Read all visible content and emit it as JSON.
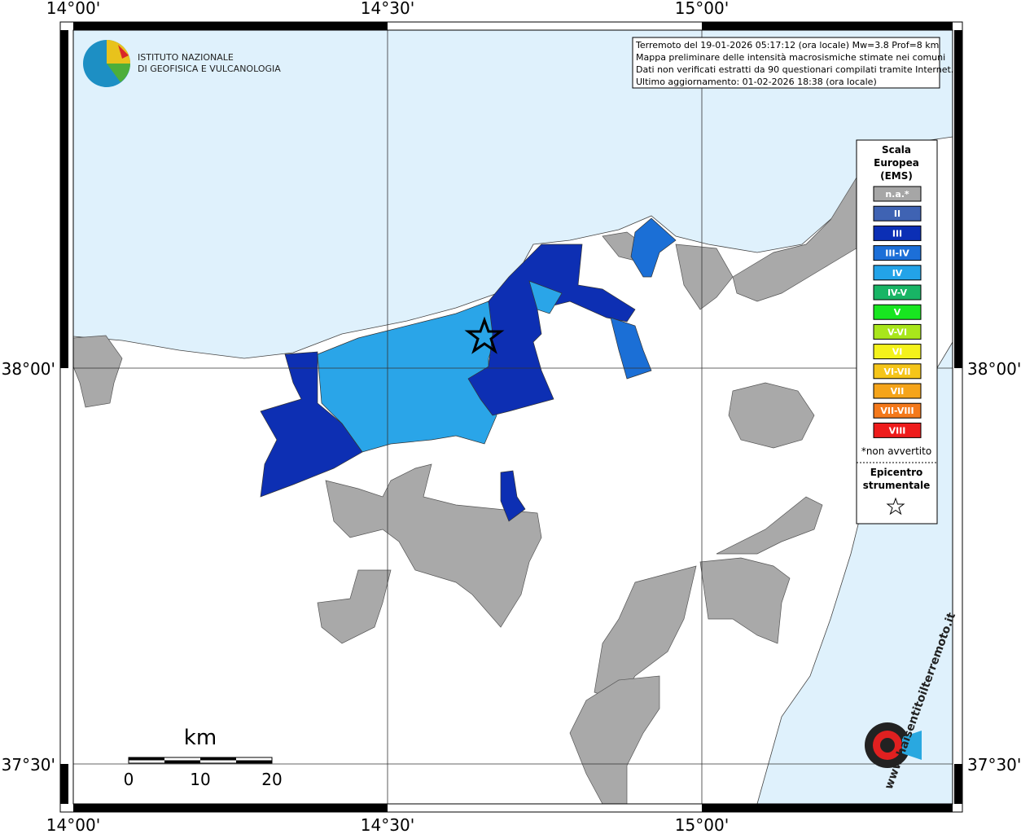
{
  "header": {
    "lines": [
      "Terremoto del 19-01-2026 05:17:12 (ora locale) Mw=3.8 Prof=8 km",
      "Mappa preliminare delle intensità macrosismiche stimate nei comuni",
      "Dati non verificati estratti da 90 questionari compilati tramite Internet.",
      "Ultimo aggiornamento: 01-02-2026 18:38 (ora locale)"
    ]
  },
  "logo": {
    "lines": [
      "ISTITUTO NAZIONALE",
      "DI GEOFISICA E VULCANOLOGIA"
    ]
  },
  "axes": {
    "longitudes": [
      "14°00'",
      "14°30'",
      "15°00'"
    ],
    "latitudes": [
      "38°00'",
      "37°30'"
    ]
  },
  "legend": {
    "title": [
      "Scala",
      "Europea",
      "(EMS)"
    ],
    "items": [
      {
        "label": "n.a.*",
        "color": "#a6a6a6"
      },
      {
        "label": "II",
        "color": "#3f63b3"
      },
      {
        "label": "III",
        "color": "#0b2fb5"
      },
      {
        "label": "III-IV",
        "color": "#1c6fd8"
      },
      {
        "label": "IV",
        "color": "#23a3e8"
      },
      {
        "label": "IV-V",
        "color": "#18b565"
      },
      {
        "label": "V",
        "color": "#18e620"
      },
      {
        "label": "V-VI",
        "color": "#a9e61b"
      },
      {
        "label": "VI",
        "color": "#f4f21b"
      },
      {
        "label": "VI-VII",
        "color": "#f5c519"
      },
      {
        "label": "VII",
        "color": "#f5a41a"
      },
      {
        "label": "VII-VIII",
        "color": "#f4791b"
      },
      {
        "label": "VIII",
        "color": "#ee1c1c"
      }
    ],
    "note": "*non avvertito",
    "epicenter": [
      "Epicentro",
      "strumentale"
    ]
  },
  "scale": {
    "unit": "km",
    "ticks": [
      0,
      10,
      20
    ]
  },
  "watermark": "www.haisentitoilterremoto.it"
}
